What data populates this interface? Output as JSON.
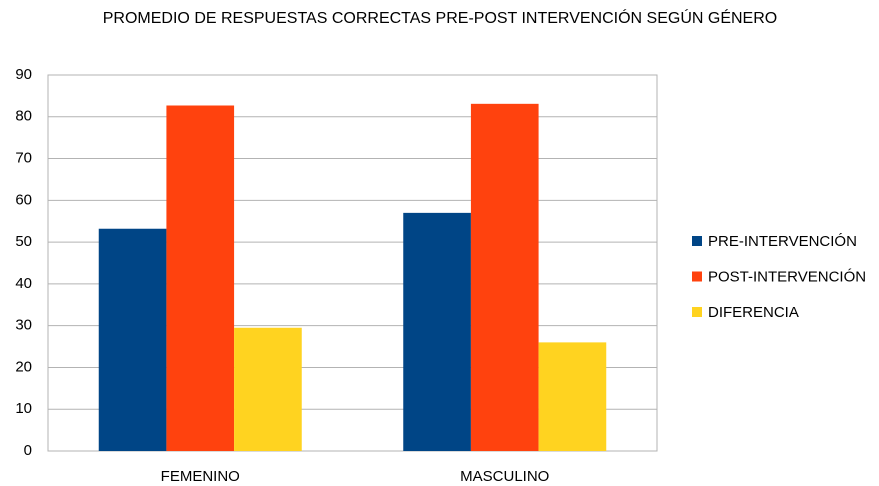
{
  "chart_data": {
    "type": "bar",
    "title": "PROMEDIO DE RESPUESTAS CORRECTAS PRE-POST INTERVENCIÓN SEGÚN GÉNERO",
    "categories": [
      "FEMENINO",
      "MASCULINO"
    ],
    "series": [
      {
        "name": "PRE-INTERVENCIÓN",
        "color": "#004586",
        "values": [
          53.2,
          57
        ]
      },
      {
        "name": "POST-INTERVENCIÓN",
        "color": "#ff420e",
        "values": [
          82.7,
          83.1
        ]
      },
      {
        "name": "DIFERENCIA",
        "color": "#ffd320",
        "values": [
          29.5,
          26
        ]
      }
    ],
    "ylim": [
      0,
      90
    ],
    "yticks": [
      0,
      10,
      20,
      30,
      40,
      50,
      60,
      70,
      80,
      90
    ],
    "grid": true,
    "legend": "right"
  }
}
